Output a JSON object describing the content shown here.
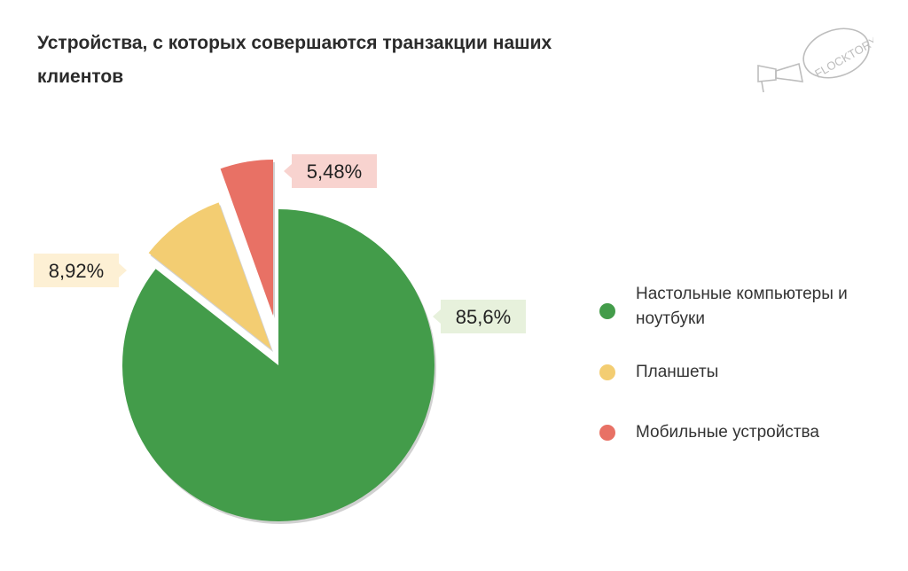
{
  "title": "Устройства, с которых совершаются транзакции наших клиентов",
  "logo": {
    "text": "FLOCKTORY",
    "icon": "megaphone-icon"
  },
  "colors": {
    "green": "#439c4a",
    "yellow": "#f3cd72",
    "red": "#e87165",
    "green_label_bg": "#e7f1dc",
    "yellow_label_bg": "#fdf0d4",
    "red_label_bg": "#f8d3cf"
  },
  "chart_data": {
    "type": "pie",
    "title": "Устройства, с которых совершаются транзакции наших клиентов",
    "slices": [
      {
        "label": "Настольные компьютеры и ноутбуки",
        "value": 85.6,
        "display": "85,6%",
        "color": "#439c4a",
        "exploded": false
      },
      {
        "label": "Планшеты",
        "value": 8.92,
        "display": "8,92%",
        "color": "#f3cd72",
        "exploded": true
      },
      {
        "label": "Мобильные устройства",
        "value": 5.48,
        "display": "5,48%",
        "color": "#e87165",
        "exploded": true
      }
    ],
    "legend_position": "right"
  },
  "legend": [
    {
      "label": "Настольные компьютеры и ноутбуки",
      "color": "#439c4a"
    },
    {
      "label": "Планшеты",
      "color": "#f3cd72"
    },
    {
      "label": "Мобильные устройства",
      "color": "#e87165"
    }
  ]
}
